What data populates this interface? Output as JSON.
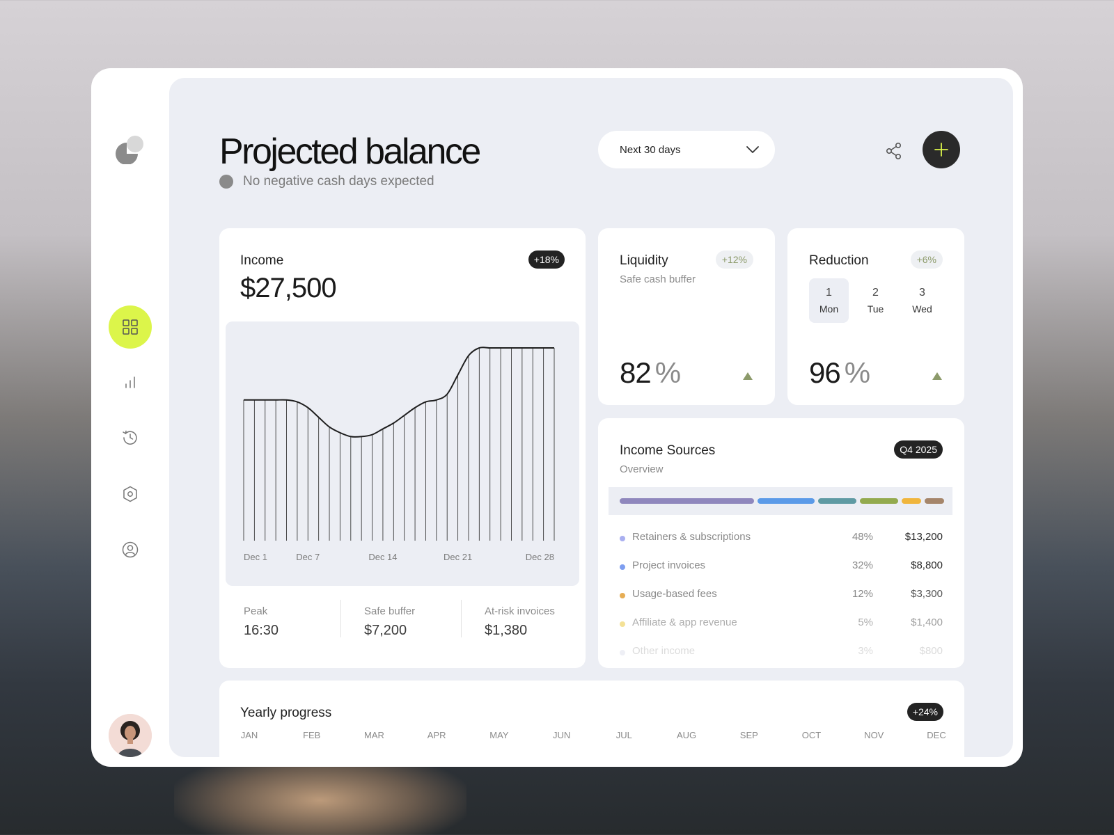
{
  "header": {
    "title": "Projected balance",
    "subtitle": "No negative cash days expected",
    "range": "Next 30 days"
  },
  "income": {
    "title": "Income",
    "badge": "+18%",
    "currency": "$",
    "amount": "27,500",
    "chart_data": {
      "type": "area",
      "x": [
        "Dec 1",
        "Dec 2",
        "Dec 3",
        "Dec 4",
        "Dec 5",
        "Dec 6",
        "Dec 7",
        "Dec 8",
        "Dec 9",
        "Dec 10",
        "Dec 11",
        "Dec 12",
        "Dec 13",
        "Dec 14",
        "Dec 15",
        "Dec 16",
        "Dec 17",
        "Dec 18",
        "Dec 19",
        "Dec 20",
        "Dec 21",
        "Dec 22",
        "Dec 23",
        "Dec 24",
        "Dec 25",
        "Dec 26",
        "Dec 27",
        "Dec 28",
        "Dec 29",
        "Dec 30"
      ],
      "values": [
        0.73,
        0.73,
        0.73,
        0.73,
        0.73,
        0.72,
        0.69,
        0.64,
        0.59,
        0.56,
        0.54,
        0.54,
        0.55,
        0.58,
        0.61,
        0.65,
        0.69,
        0.72,
        0.73,
        0.76,
        0.86,
        0.96,
        1.0,
        1.0,
        1.0,
        1.0,
        1.0,
        1.0,
        1.0,
        1.0
      ],
      "tick_labels": [
        "Dec 1",
        "Dec 7",
        "Dec 14",
        "Dec 21",
        "Dec 28"
      ],
      "ylim": [
        0,
        1
      ]
    },
    "stats": [
      {
        "label": "Peak",
        "value": "16:30"
      },
      {
        "label": "Safe buffer",
        "value": "$7,200"
      },
      {
        "label": "At-risk invoices",
        "value": "$1,380"
      }
    ]
  },
  "liquidity": {
    "title": "Liquidity",
    "badge": "+12%",
    "subtitle": "Safe cash buffer",
    "value": "82",
    "unit": "%"
  },
  "reduction": {
    "title": "Reduction",
    "badge": "+6%",
    "days": [
      {
        "num": "1",
        "name": "Mon"
      },
      {
        "num": "2",
        "name": "Tue"
      },
      {
        "num": "3",
        "name": "Wed"
      }
    ],
    "value": "96",
    "unit": "%"
  },
  "sources": {
    "title": "Income Sources",
    "subtitle": "Overview",
    "badge": "Q4 2025",
    "items": [
      {
        "name": "Retainers & subscriptions",
        "pct": "48%",
        "amount": "$13,200",
        "color": "#8f87bd"
      },
      {
        "name": "Project invoices",
        "pct": "32%",
        "amount": "$8,800",
        "color": "#5b9ae8"
      },
      {
        "name": "Usage-based fees",
        "pct": "12%",
        "amount": "$3,300",
        "color": "#5f9aa3"
      },
      {
        "name": "Affiliate & app revenue",
        "pct": "5%",
        "amount": "$1,400",
        "color": "#93aa4e"
      },
      {
        "name": "Other income",
        "pct": "3%",
        "amount": "$800",
        "color": "#f0b53c"
      }
    ],
    "extra_segment_color": "#a5856a"
  },
  "yearly": {
    "title": "Yearly progress",
    "badge": "+24%",
    "months": [
      "JAN",
      "FEB",
      "MAR",
      "APR",
      "MAY",
      "JUN",
      "JUL",
      "AUG",
      "SEP",
      "OCT",
      "NOV",
      "DEC"
    ]
  },
  "icons": {
    "logo": "logo-icon",
    "nav": [
      "dashboard-grid-icon",
      "bar-chart-icon",
      "history-icon",
      "settings-hex-icon",
      "profile-icon"
    ],
    "share": "share-icon",
    "add": "plus-icon",
    "dropdown": "chevron-down-icon"
  },
  "colors": {
    "accent": "#dcf54a",
    "positive": "#8c9a6a",
    "dark": "#2a2a2a"
  }
}
